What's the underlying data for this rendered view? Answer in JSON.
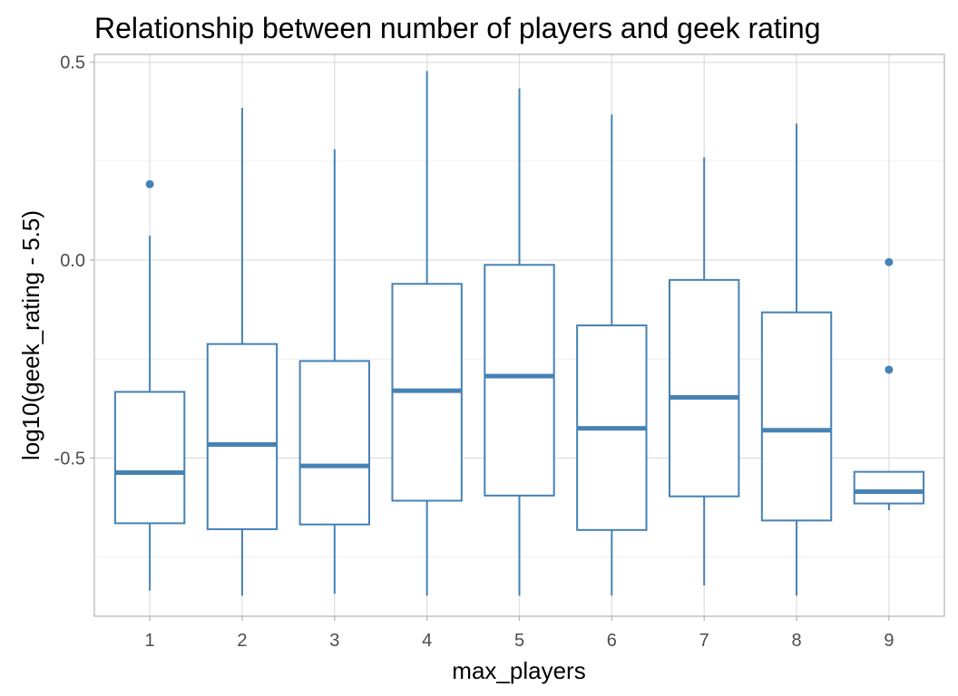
{
  "chart_data": {
    "type": "boxplot",
    "title": "Relationship between number of players and geek rating",
    "xlabel": "max_players",
    "ylabel": "log10(geek_rating - 5.5)",
    "categories": [
      "1",
      "2",
      "3",
      "4",
      "5",
      "6",
      "7",
      "8",
      "9"
    ],
    "ylim": [
      -0.9,
      0.52
    ],
    "yticks": [
      0.5,
      0.0,
      -0.5
    ],
    "ytick_labels": [
      "0.5",
      "0.0",
      "-0.5"
    ],
    "y_minor_gridlines": [
      0.25,
      -0.25,
      -0.75
    ],
    "grid": true,
    "color": "#4682b4",
    "boxes": [
      {
        "category": "1",
        "whisker_low": -0.835,
        "q1": -0.665,
        "median": -0.537,
        "q3": -0.333,
        "whisker_high": 0.062,
        "outliers": [
          0.192
        ]
      },
      {
        "category": "2",
        "whisker_low": -0.848,
        "q1": -0.68,
        "median": -0.466,
        "q3": -0.212,
        "whisker_high": 0.385,
        "outliers": []
      },
      {
        "category": "3",
        "whisker_low": -0.843,
        "q1": -0.668,
        "median": -0.52,
        "q3": -0.255,
        "whisker_high": 0.28,
        "outliers": []
      },
      {
        "category": "4",
        "whisker_low": -0.848,
        "q1": -0.608,
        "median": -0.33,
        "q3": -0.06,
        "whisker_high": 0.478,
        "outliers": []
      },
      {
        "category": "5",
        "whisker_low": -0.848,
        "q1": -0.595,
        "median": -0.293,
        "q3": -0.012,
        "whisker_high": 0.434,
        "outliers": []
      },
      {
        "category": "6",
        "whisker_low": -0.848,
        "q1": -0.682,
        "median": -0.425,
        "q3": -0.165,
        "whisker_high": 0.368,
        "outliers": []
      },
      {
        "category": "7",
        "whisker_low": -0.822,
        "q1": -0.597,
        "median": -0.347,
        "q3": -0.05,
        "whisker_high": 0.26,
        "outliers": []
      },
      {
        "category": "8",
        "whisker_low": -0.848,
        "q1": -0.658,
        "median": -0.43,
        "q3": -0.132,
        "whisker_high": 0.345,
        "outliers": []
      },
      {
        "category": "9",
        "whisker_low": -0.632,
        "q1": -0.615,
        "median": -0.585,
        "q3": -0.535,
        "whisker_high": -0.535,
        "outliers": [
          -0.005,
          -0.277
        ]
      }
    ]
  }
}
